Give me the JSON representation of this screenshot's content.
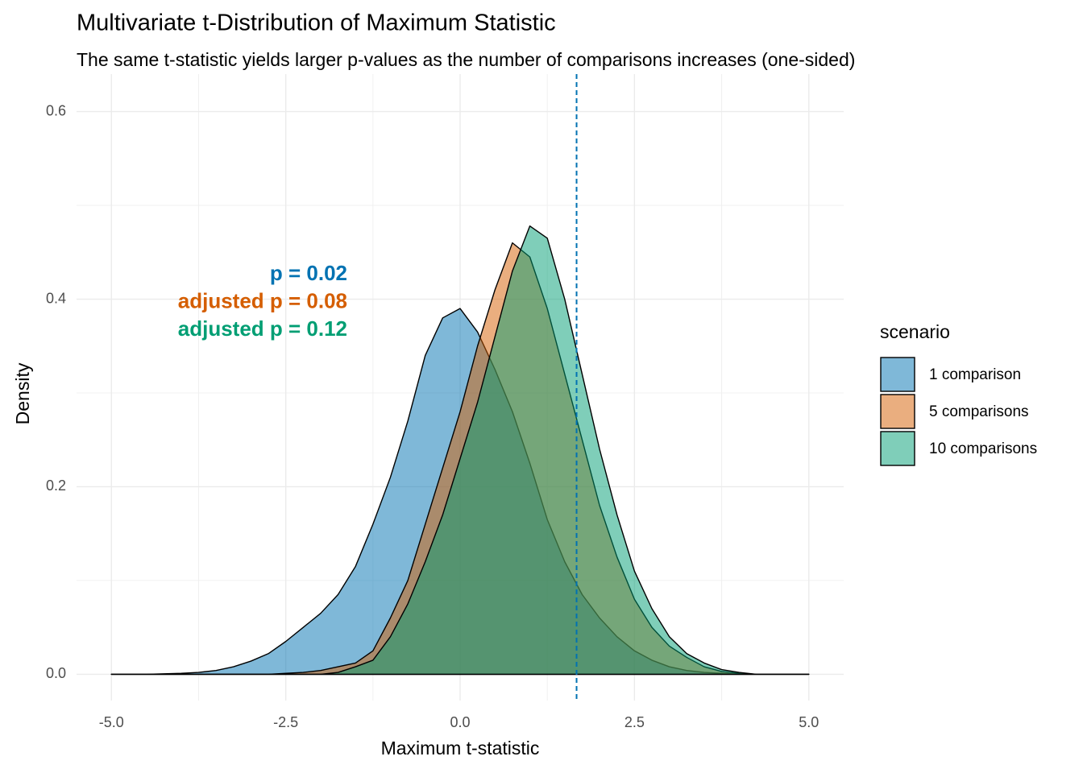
{
  "chart_data": {
    "type": "density",
    "title": "Multivariate t-Distribution of Maximum Statistic",
    "subtitle": "The same t-statistic yields larger p-values as the number of comparisons increases (one-sided)",
    "x_label": "Maximum t-statistic",
    "y_label": "Density",
    "xlim": [
      -5.5,
      5.5
    ],
    "ylim": [
      -0.028,
      0.64
    ],
    "xticks": [
      {
        "value": -5,
        "label": "-5.0"
      },
      -2.5,
      {
        "value": 0,
        "label": "0.0"
      },
      2.5,
      {
        "value": 5,
        "label": "5.0"
      }
    ],
    "yticks": [
      {
        "value": 0,
        "label": "0.0"
      },
      0.2,
      0.4,
      0.6
    ],
    "x_minor_grid": [
      -3.75,
      -1.25,
      1.25,
      3.75
    ],
    "y_minor_grid": [
      0.1,
      0.3,
      0.5
    ],
    "grid": true,
    "vline": {
      "x": 1.67,
      "color": "#0072B2"
    },
    "legend_title": "scenario",
    "legend_position": "right",
    "annotations": [
      {
        "text": "p = 0.02",
        "color": "#0072B2"
      },
      {
        "text": "adjusted p = 0.08",
        "color": "#D55E00"
      },
      {
        "text": "adjusted p = 0.12",
        "color": "#009E73"
      }
    ],
    "x": [
      -5,
      -4.75,
      -4.5,
      -4.25,
      -4,
      -3.75,
      -3.5,
      -3.25,
      -3,
      -2.75,
      -2.5,
      -2.25,
      -2,
      -1.75,
      -1.5,
      -1.25,
      -1,
      -0.75,
      -0.5,
      -0.25,
      0,
      0.25,
      0.5,
      0.75,
      1,
      1.25,
      1.5,
      1.75,
      2,
      2.25,
      2.5,
      2.75,
      3,
      3.25,
      3.5,
      3.75,
      4,
      4.25,
      4.5,
      4.75,
      5
    ],
    "series": [
      {
        "name": "1 comparison",
        "color": "#0072B2",
        "values": [
          0,
          0,
          0,
          0.0005,
          0.001,
          0.002,
          0.004,
          0.008,
          0.014,
          0.022,
          0.035,
          0.05,
          0.065,
          0.085,
          0.115,
          0.16,
          0.21,
          0.27,
          0.34,
          0.38,
          0.39,
          0.365,
          0.325,
          0.28,
          0.225,
          0.165,
          0.12,
          0.085,
          0.06,
          0.04,
          0.025,
          0.015,
          0.008,
          0.004,
          0.002,
          0.001,
          0,
          0,
          0,
          0,
          0
        ]
      },
      {
        "name": "5 comparisons",
        "color": "#D55E00",
        "values": [
          0,
          0,
          0,
          0,
          0,
          0,
          0,
          0,
          0,
          0,
          0.001,
          0.002,
          0.004,
          0.008,
          0.012,
          0.025,
          0.06,
          0.1,
          0.16,
          0.22,
          0.28,
          0.35,
          0.41,
          0.46,
          0.445,
          0.39,
          0.32,
          0.25,
          0.18,
          0.125,
          0.08,
          0.05,
          0.03,
          0.018,
          0.008,
          0.003,
          0.001,
          0,
          0,
          0,
          0
        ]
      },
      {
        "name": "10 comparisons",
        "color": "#009E73",
        "values": [
          0,
          0,
          0,
          0,
          0,
          0,
          0,
          0,
          0,
          0,
          0,
          0,
          0,
          0.002,
          0.008,
          0.015,
          0.04,
          0.075,
          0.12,
          0.17,
          0.23,
          0.29,
          0.36,
          0.43,
          0.478,
          0.465,
          0.4,
          0.32,
          0.24,
          0.17,
          0.11,
          0.07,
          0.04,
          0.022,
          0.012,
          0.005,
          0.002,
          0,
          0,
          0,
          0
        ]
      }
    ]
  }
}
